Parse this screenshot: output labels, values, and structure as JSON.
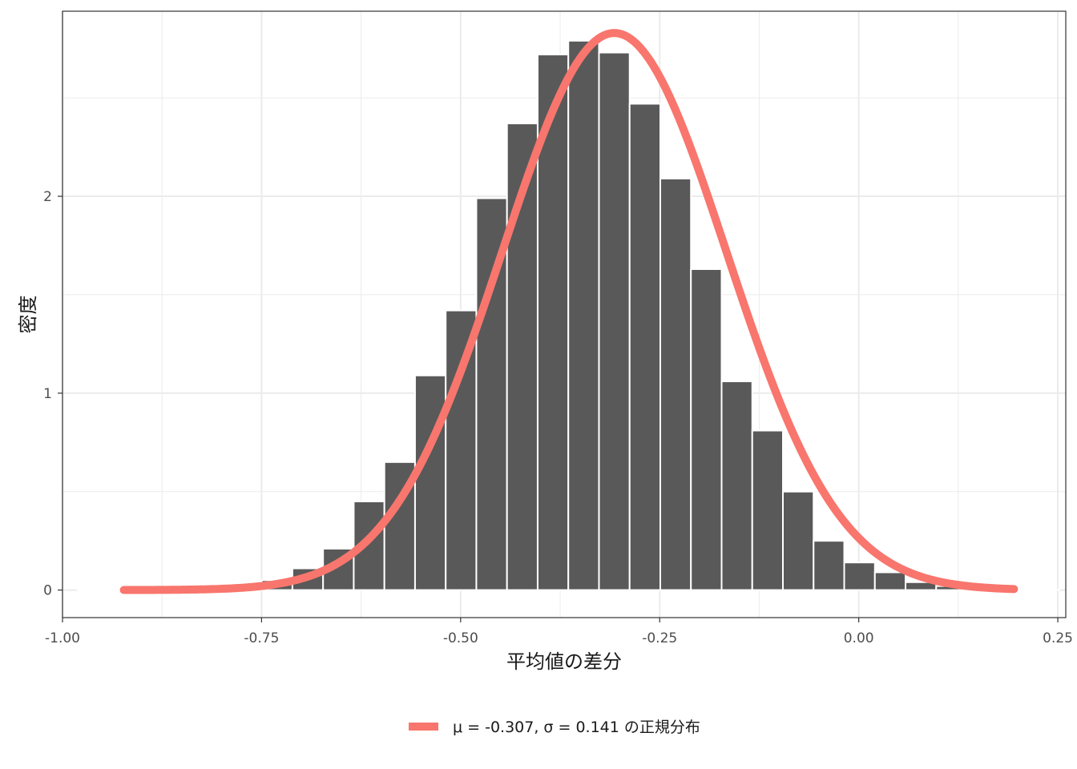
{
  "chart_data": {
    "type": "bar",
    "xlabel": "平均値の差分",
    "ylabel": "密度",
    "xlim": [
      -1.0,
      0.26
    ],
    "ylim": [
      -0.14,
      2.94
    ],
    "x_ticks": [
      -1.0,
      -0.75,
      -0.5,
      -0.25,
      0.0,
      0.25
    ],
    "x_tick_labels": [
      "-1.00",
      "-0.75",
      "-0.50",
      "-0.25",
      "0.00",
      "0.25"
    ],
    "y_ticks": [
      0,
      1,
      2
    ],
    "y_tick_labels": [
      "0",
      "1",
      "2"
    ],
    "grid": true,
    "bin_width": 0.0385,
    "histogram": {
      "bin_centers": [
        -0.9615,
        -0.923,
        -0.8845,
        -0.846,
        -0.8075,
        -0.769,
        -0.7305,
        -0.692,
        -0.6535,
        -0.615,
        -0.5765,
        -0.538,
        -0.4995,
        -0.461,
        -0.4225,
        -0.384,
        -0.3455,
        -0.307,
        -0.2685,
        -0.23,
        -0.1915,
        -0.153,
        -0.1145,
        -0.076,
        -0.0375,
        0.001,
        0.0395,
        0.078,
        0.1165,
        0.155,
        0.1935,
        0.232
      ],
      "values": [
        0.001,
        0.002,
        0.003,
        0.005,
        0.01,
        0.02,
        0.05,
        0.11,
        0.21,
        0.45,
        0.65,
        1.09,
        1.42,
        1.99,
        2.37,
        2.72,
        2.79,
        2.73,
        2.47,
        2.09,
        1.63,
        1.06,
        0.81,
        0.5,
        0.25,
        0.14,
        0.09,
        0.04,
        0.02,
        0.01,
        0.005,
        0.002
      ],
      "color": "#595959"
    },
    "series": [
      {
        "name": "μ = -0.307,  σ = 0.141 の正規分布",
        "type": "line",
        "mu": -0.307,
        "sigma": 0.141,
        "x_range": [
          -0.923,
          0.195
        ],
        "color": "#F8766D"
      }
    ],
    "legend_position": "bottom"
  }
}
